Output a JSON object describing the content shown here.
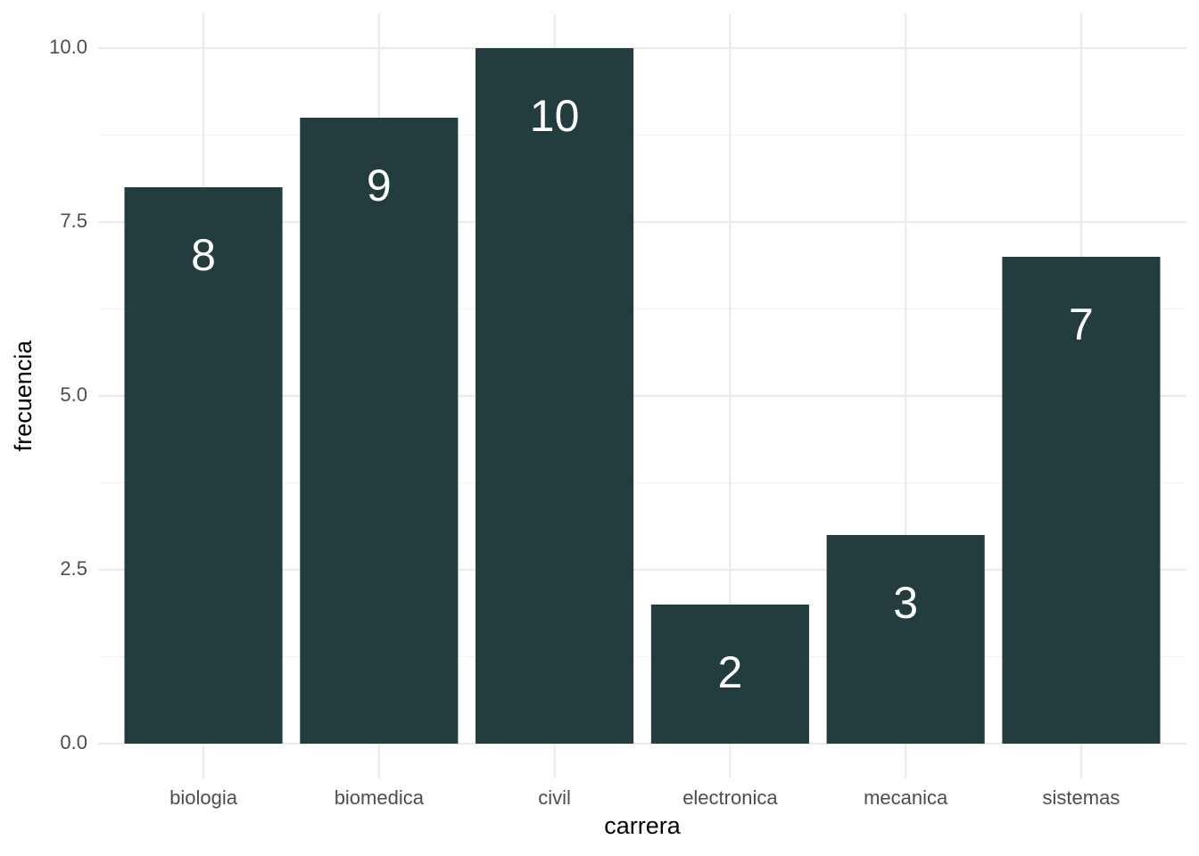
{
  "chart_data": {
    "type": "bar",
    "x_label": "carrera",
    "y_label": "frecuencia",
    "categories": [
      "biologia",
      "biomedica",
      "civil",
      "electronica",
      "mecanica",
      "sistemas"
    ],
    "values": [
      8,
      9,
      10,
      2,
      3,
      7
    ],
    "color": "#233c3e",
    "ylim": [
      -0.5,
      10.5
    ],
    "yticks": [
      {
        "value": 0,
        "label": "0.0"
      },
      {
        "value": 2.5,
        "label": "2.5"
      },
      {
        "value": 5,
        "label": "5.0"
      },
      {
        "value": 7.5,
        "label": "7.5"
      },
      {
        "value": 10,
        "label": "10.0"
      }
    ],
    "y_minor_ticks": [
      1.25,
      3.75,
      6.25,
      8.75
    ],
    "grid": true
  }
}
